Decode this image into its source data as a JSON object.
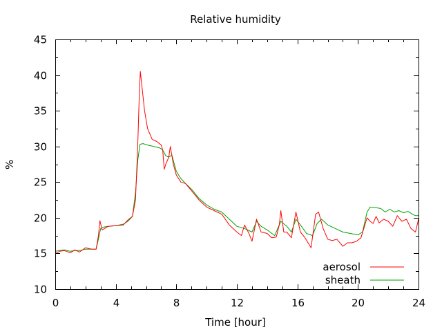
{
  "chart_data": {
    "type": "line",
    "title": "Relative humidity",
    "xlabel": "Time [hour]",
    "ylabel": "%",
    "xlim": [
      0,
      24
    ],
    "ylim": [
      10,
      45
    ],
    "x_ticks": [
      0,
      4,
      8,
      12,
      16,
      20,
      24
    ],
    "y_ticks": [
      10,
      15,
      20,
      25,
      30,
      35,
      40,
      45
    ],
    "grid": false,
    "legend_position": "bottom-right",
    "series": [
      {
        "name": "aerosol",
        "color": "#ff0000",
        "points": [
          [
            0.0,
            15.0
          ],
          [
            0.3,
            15.3
          ],
          [
            0.6,
            15.4
          ],
          [
            1.0,
            15.1
          ],
          [
            1.3,
            15.5
          ],
          [
            1.6,
            15.2
          ],
          [
            2.0,
            15.8
          ],
          [
            2.4,
            15.6
          ],
          [
            2.7,
            15.6
          ],
          [
            2.85,
            17.5
          ],
          [
            2.95,
            19.6
          ],
          [
            3.1,
            18.3
          ],
          [
            3.5,
            18.8
          ],
          [
            4.0,
            18.9
          ],
          [
            4.5,
            19.0
          ],
          [
            4.8,
            19.7
          ],
          [
            5.1,
            20.2
          ],
          [
            5.3,
            22.5
          ],
          [
            5.45,
            30.0
          ],
          [
            5.55,
            37.0
          ],
          [
            5.62,
            40.5
          ],
          [
            5.75,
            38.0
          ],
          [
            5.9,
            35.0
          ],
          [
            6.1,
            32.5
          ],
          [
            6.4,
            31.0
          ],
          [
            6.7,
            30.7
          ],
          [
            7.0,
            30.2
          ],
          [
            7.1,
            29.5
          ],
          [
            7.2,
            26.8
          ],
          [
            7.3,
            27.5
          ],
          [
            7.5,
            28.5
          ],
          [
            7.6,
            30.0
          ],
          [
            7.8,
            27.5
          ],
          [
            8.0,
            26.0
          ],
          [
            8.3,
            25.0
          ],
          [
            8.6,
            24.8
          ],
          [
            9.0,
            23.8
          ],
          [
            9.5,
            22.5
          ],
          [
            10.0,
            21.5
          ],
          [
            10.5,
            21.0
          ],
          [
            11.0,
            20.5
          ],
          [
            11.5,
            19.0
          ],
          [
            12.0,
            18.0
          ],
          [
            12.3,
            17.5
          ],
          [
            12.5,
            19.0
          ],
          [
            12.8,
            17.8
          ],
          [
            13.0,
            16.7
          ],
          [
            13.3,
            19.8
          ],
          [
            13.6,
            18.0
          ],
          [
            14.0,
            17.8
          ],
          [
            14.3,
            17.2
          ],
          [
            14.6,
            17.3
          ],
          [
            14.8,
            19.0
          ],
          [
            14.9,
            21.0
          ],
          [
            15.1,
            18.0
          ],
          [
            15.3,
            18.0
          ],
          [
            15.6,
            17.2
          ],
          [
            15.9,
            20.8
          ],
          [
            16.2,
            18.0
          ],
          [
            16.5,
            17.2
          ],
          [
            16.9,
            15.8
          ],
          [
            17.2,
            20.5
          ],
          [
            17.4,
            20.8
          ],
          [
            17.7,
            18.5
          ],
          [
            18.0,
            17.0
          ],
          [
            18.3,
            16.8
          ],
          [
            18.6,
            17.0
          ],
          [
            19.0,
            16.0
          ],
          [
            19.3,
            16.5
          ],
          [
            19.6,
            16.5
          ],
          [
            19.9,
            16.7
          ],
          [
            20.2,
            17.2
          ],
          [
            20.6,
            20.0
          ],
          [
            20.8,
            19.5
          ],
          [
            21.0,
            19.2
          ],
          [
            21.2,
            20.2
          ],
          [
            21.4,
            19.3
          ],
          [
            21.7,
            19.8
          ],
          [
            22.0,
            19.5
          ],
          [
            22.3,
            18.8
          ],
          [
            22.6,
            20.3
          ],
          [
            22.9,
            19.5
          ],
          [
            23.2,
            19.8
          ],
          [
            23.5,
            18.5
          ],
          [
            23.8,
            18.0
          ],
          [
            24.0,
            19.8
          ]
        ]
      },
      {
        "name": "sheath",
        "color": "#00a000",
        "points": [
          [
            0.0,
            15.3
          ],
          [
            0.3,
            15.4
          ],
          [
            0.6,
            15.5
          ],
          [
            1.0,
            15.3
          ],
          [
            1.3,
            15.4
          ],
          [
            1.6,
            15.4
          ],
          [
            2.0,
            15.6
          ],
          [
            2.4,
            15.6
          ],
          [
            2.7,
            15.6
          ],
          [
            2.85,
            17.0
          ],
          [
            3.0,
            18.5
          ],
          [
            3.2,
            18.7
          ],
          [
            3.5,
            18.8
          ],
          [
            4.0,
            18.9
          ],
          [
            4.5,
            19.1
          ],
          [
            4.8,
            19.5
          ],
          [
            5.1,
            20.2
          ],
          [
            5.3,
            23.5
          ],
          [
            5.45,
            28.0
          ],
          [
            5.6,
            30.3
          ],
          [
            5.8,
            30.4
          ],
          [
            6.1,
            30.2
          ],
          [
            6.5,
            30.0
          ],
          [
            6.9,
            29.8
          ],
          [
            7.1,
            29.5
          ],
          [
            7.3,
            28.7
          ],
          [
            7.5,
            28.5
          ],
          [
            7.7,
            28.8
          ],
          [
            8.0,
            26.5
          ],
          [
            8.3,
            25.5
          ],
          [
            8.6,
            24.8
          ],
          [
            9.0,
            24.0
          ],
          [
            9.5,
            22.7
          ],
          [
            10.0,
            21.8
          ],
          [
            10.5,
            21.2
          ],
          [
            11.0,
            20.8
          ],
          [
            11.5,
            19.8
          ],
          [
            12.0,
            18.8
          ],
          [
            12.5,
            18.5
          ],
          [
            13.0,
            18.0
          ],
          [
            13.3,
            19.5
          ],
          [
            13.6,
            18.8
          ],
          [
            14.0,
            18.3
          ],
          [
            14.5,
            17.5
          ],
          [
            14.9,
            19.5
          ],
          [
            15.3,
            18.8
          ],
          [
            15.6,
            18.0
          ],
          [
            15.9,
            19.8
          ],
          [
            16.2,
            19.0
          ],
          [
            16.6,
            17.8
          ],
          [
            17.0,
            17.5
          ],
          [
            17.3,
            19.2
          ],
          [
            17.6,
            19.8
          ],
          [
            18.0,
            19.0
          ],
          [
            18.5,
            18.5
          ],
          [
            19.0,
            18.0
          ],
          [
            19.5,
            17.8
          ],
          [
            20.0,
            17.6
          ],
          [
            20.3,
            18.0
          ],
          [
            20.6,
            20.8
          ],
          [
            20.8,
            21.5
          ],
          [
            21.2,
            21.4
          ],
          [
            21.5,
            21.3
          ],
          [
            21.8,
            20.8
          ],
          [
            22.1,
            21.2
          ],
          [
            22.4,
            20.8
          ],
          [
            22.7,
            21.0
          ],
          [
            23.0,
            20.7
          ],
          [
            23.3,
            20.9
          ],
          [
            23.6,
            20.5
          ],
          [
            23.8,
            20.3
          ],
          [
            24.0,
            20.3
          ]
        ]
      }
    ]
  }
}
